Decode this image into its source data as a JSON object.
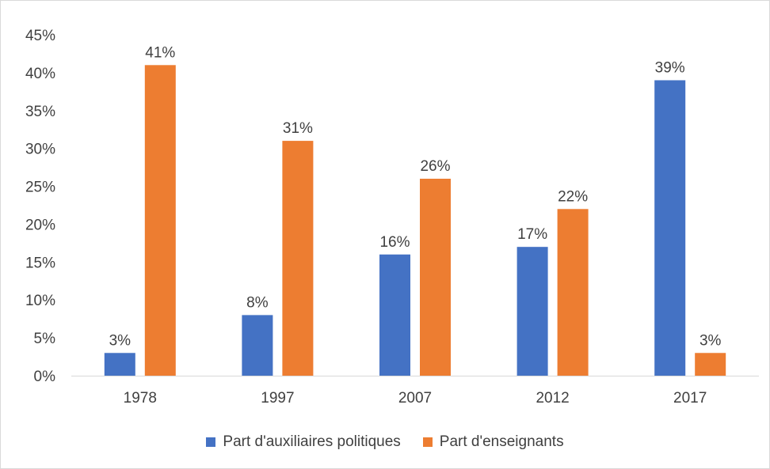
{
  "chart_data": {
    "type": "bar",
    "categories": [
      "1978",
      "1997",
      "2007",
      "2012",
      "2017"
    ],
    "series": [
      {
        "name": "Part d'auxiliaires politiques",
        "color": "#4472C4",
        "values": [
          3,
          8,
          16,
          17,
          39
        ],
        "labels": [
          "3%",
          "8%",
          "16%",
          "17%",
          "39%"
        ]
      },
      {
        "name": "Part d'enseignants",
        "color": "#ED7D31",
        "values": [
          41,
          31,
          26,
          22,
          3
        ],
        "labels": [
          "41%",
          "31%",
          "26%",
          "22%",
          "3%"
        ]
      }
    ],
    "ylim": [
      0,
      45
    ],
    "yticks": [
      "0%",
      "5%",
      "10%",
      "15%",
      "20%",
      "25%",
      "30%",
      "35%",
      "40%",
      "45%"
    ],
    "ytick_values": [
      0,
      5,
      10,
      15,
      20,
      25,
      30,
      35,
      40,
      45
    ],
    "grid": false,
    "legend_position": "bottom"
  }
}
